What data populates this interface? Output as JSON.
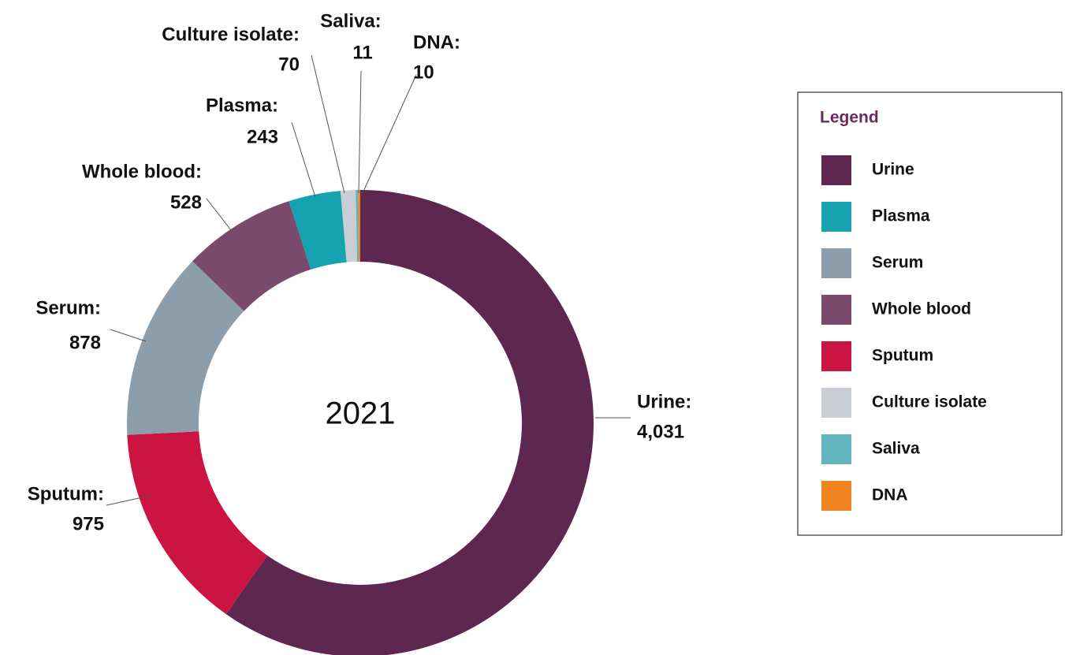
{
  "chart_data": {
    "type": "donut",
    "center_label": "2021",
    "categories": [
      "Urine",
      "Sputum",
      "Serum",
      "Whole blood",
      "Plasma",
      "Culture isolate",
      "Saliva",
      "DNA"
    ],
    "labels": [
      "Urine:",
      "Sputum:",
      "Serum:",
      "Whole blood:",
      "Plasma:",
      "Culture isolate:",
      "Saliva:",
      "DNA:"
    ],
    "values": [
      4031,
      975,
      878,
      528,
      243,
      70,
      11,
      10
    ],
    "value_labels": [
      "4,031",
      "975",
      "878",
      "528",
      "243",
      "70",
      "11",
      "10"
    ],
    "colors": [
      "#5e2750",
      "#cc1443",
      "#8c9eab",
      "#7a4a6c",
      "#17a2b0",
      "#c9ced6",
      "#62b5bf",
      "#f08522"
    ],
    "legend": {
      "title": "Legend",
      "items": [
        "Urine",
        "Plasma",
        "Serum",
        "Whole blood",
        "Sputum",
        "Culture isolate",
        "Saliva",
        "DNA"
      ]
    }
  }
}
